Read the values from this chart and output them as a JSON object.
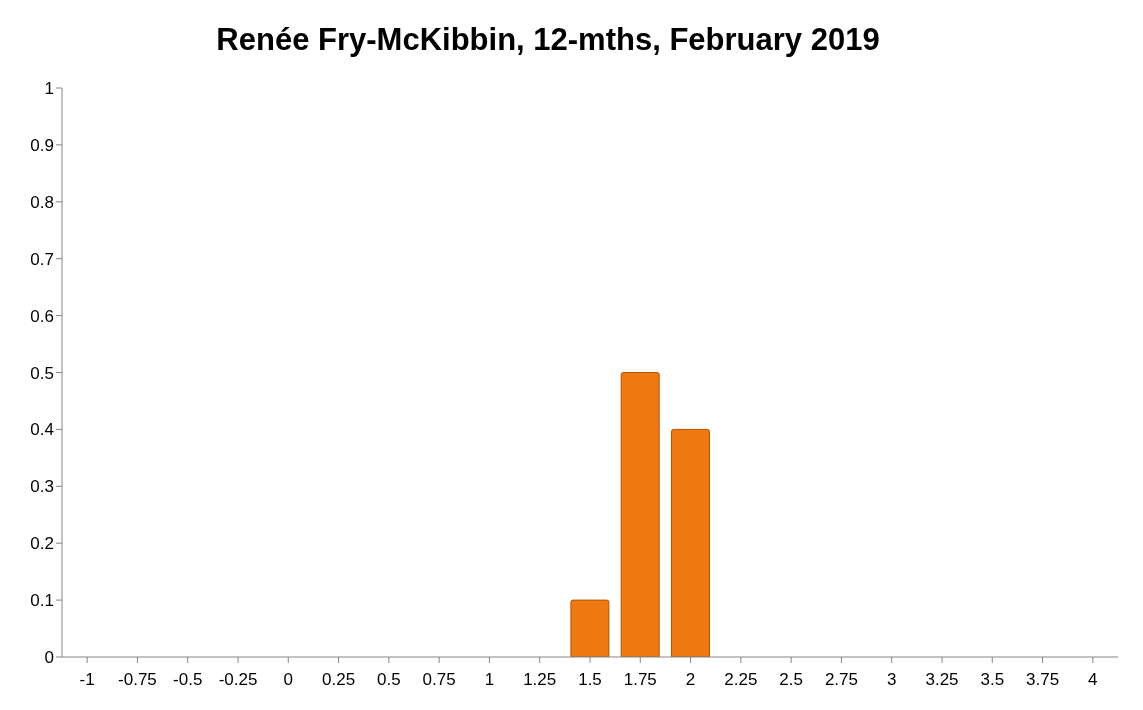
{
  "chart_data": {
    "type": "bar",
    "title": "Renée Fry-McKibbin, 12-mths, February 2019",
    "categories": [
      "-1",
      "-0.75",
      "-0.5",
      "-0.25",
      "0",
      "0.25",
      "0.5",
      "0.75",
      "1",
      "1.25",
      "1.5",
      "1.75",
      "2",
      "2.25",
      "2.5",
      "2.75",
      "3",
      "3.25",
      "3.5",
      "3.75",
      "4"
    ],
    "values": [
      0,
      0,
      0,
      0,
      0,
      0,
      0,
      0,
      0,
      0,
      0.1,
      0.5,
      0.4,
      0,
      0,
      0,
      0,
      0,
      0,
      0,
      0
    ],
    "color": "#f07812",
    "ylim": [
      0,
      1
    ],
    "yticks": [
      0,
      0.1,
      0.2,
      0.3,
      0.4,
      0.5,
      0.6,
      0.7,
      0.8,
      0.9,
      1
    ],
    "grid": false,
    "legend": false
  }
}
